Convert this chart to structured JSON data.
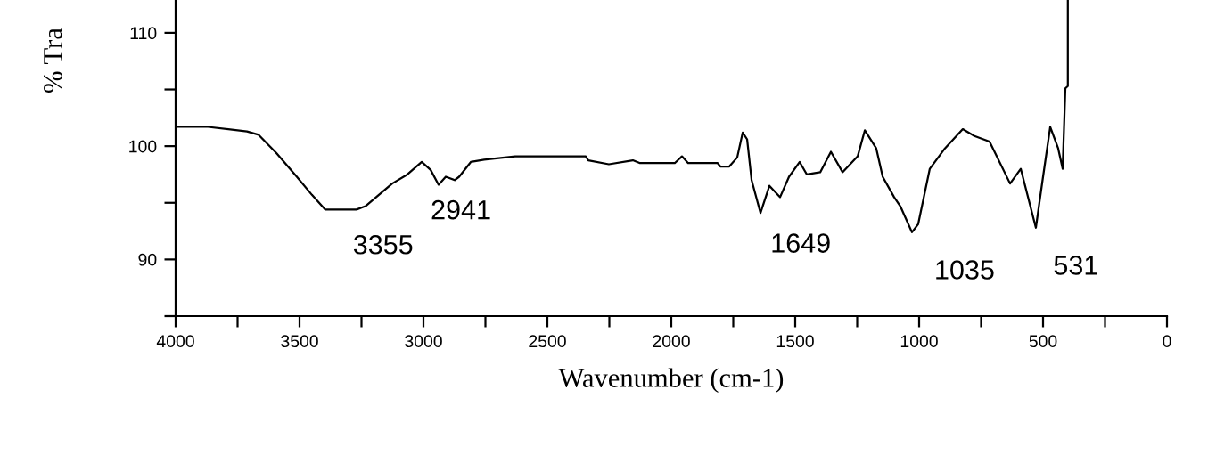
{
  "chart_data": {
    "type": "line",
    "xlabel": "Wavenumber (cm-1)",
    "ylabel": "% Tra",
    "x": [
      3996,
      3870,
      3712,
      3665,
      3594,
      3511,
      3450,
      3396,
      3270,
      3234,
      3126,
      3065,
      3007,
      2971,
      2939,
      2910,
      2874,
      2856,
      2809,
      2755,
      2630,
      2550,
      2345,
      2335,
      2252,
      2155,
      2126,
      1986,
      1957,
      1932,
      1813,
      1802,
      1766,
      1734,
      1712,
      1694,
      1676,
      1640,
      1604,
      1561,
      1525,
      1482,
      1453,
      1399,
      1356,
      1309,
      1248,
      1219,
      1173,
      1147,
      1101,
      1076,
      1029,
      1004,
      957,
      896,
      824,
      777,
      716,
      633,
      590,
      529,
      500,
      471,
      439,
      421,
      410,
      400,
      400
    ],
    "series": [
      {
        "color": "#000000",
        "values": [
          101.7,
          101.7,
          101.3,
          101.0,
          99.4,
          97.3,
          95.7,
          94.4,
          94.4,
          94.7,
          96.7,
          97.5,
          98.6,
          97.9,
          96.6,
          97.3,
          97.0,
          97.3,
          98.6,
          98.8,
          99.1,
          99.1,
          99.1,
          98.75,
          98.4,
          98.75,
          98.5,
          98.5,
          99.1,
          98.5,
          98.5,
          98.2,
          98.2,
          99.0,
          101.2,
          100.6,
          97.0,
          94.1,
          96.5,
          95.5,
          97.3,
          98.6,
          97.5,
          97.7,
          99.5,
          97.7,
          99.1,
          101.4,
          99.8,
          97.3,
          95.5,
          94.7,
          92.4,
          93.1,
          98.0,
          99.8,
          101.5,
          100.9,
          100.4,
          96.7,
          98.0,
          92.8,
          97.3,
          101.7,
          99.8,
          98.0,
          105.1,
          105.3,
          112.9
        ]
      }
    ],
    "xlim": [
      4000,
      0
    ],
    "xticks": [
      4000,
      {
        "value": 3750,
        "label": null
      },
      3500,
      {
        "value": 3250,
        "label": null
      },
      3000,
      {
        "value": 2750,
        "label": null
      },
      2500,
      {
        "value": 2250,
        "label": null
      },
      2000,
      {
        "value": 1750,
        "label": null
      },
      1500,
      {
        "value": 1250,
        "label": null
      },
      1000,
      {
        "value": 750,
        "label": null
      },
      500,
      {
        "value": 250,
        "label": null
      },
      0
    ],
    "ylim": [
      85,
      112.9
    ],
    "yticks": [
      {
        "value": 85,
        "label": null
      },
      90,
      {
        "value": 95,
        "label": null
      },
      100,
      {
        "value": 105,
        "label": null
      },
      110
    ],
    "grid": false,
    "legend": false,
    "marker": "none",
    "line_style": "solid",
    "annotations": [
      {
        "text": "3355",
        "x": 3355,
        "y": 94.4
      },
      {
        "text": "2941",
        "x": 2941,
        "y": 96.6
      },
      {
        "text": "1649",
        "x": 1640,
        "y": 94.1
      },
      {
        "text": "1035",
        "x": 1029,
        "y": 92.4
      },
      {
        "text": "531",
        "x": 529,
        "y": 92.8
      }
    ]
  }
}
